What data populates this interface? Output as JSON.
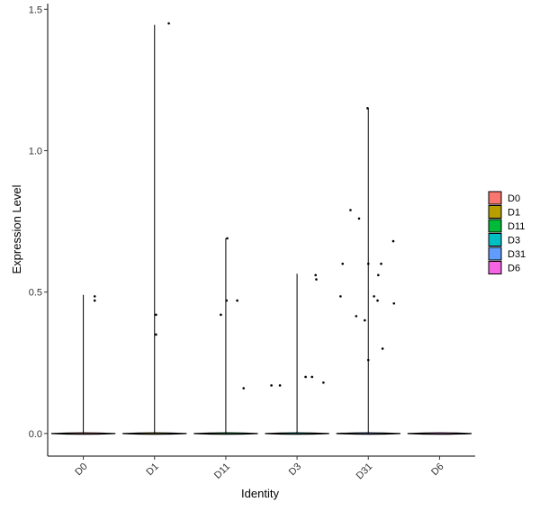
{
  "chart_data": {
    "type": "violin",
    "title": "",
    "xlabel": "Identity",
    "ylabel": "Expression Level",
    "ylim": [
      -0.08,
      1.52
    ],
    "yticks": [
      0.0,
      0.5,
      1.0,
      1.5
    ],
    "ytick_labels": [
      "0.0",
      "0.5",
      "1.0",
      "1.5"
    ],
    "categories": [
      "D0",
      "D1",
      "D11",
      "D3",
      "D31",
      "D6"
    ],
    "grid": false,
    "legend_position": "right",
    "series": [
      {
        "name": "D0",
        "color": "#F8766D",
        "max": 0.49,
        "points": [
          [
            0.16,
            0.485
          ],
          [
            0.16,
            0.47
          ]
        ]
      },
      {
        "name": "D1",
        "color": "#B79F00",
        "max": 1.445,
        "points": [
          [
            0.2,
            1.45
          ],
          [
            0.02,
            0.42
          ],
          [
            0.02,
            0.35
          ]
        ]
      },
      {
        "name": "D11",
        "color": "#00BA38",
        "max": 0.69,
        "points": [
          [
            0.02,
            0.69
          ],
          [
            -0.07,
            0.42
          ],
          [
            0.01,
            0.47
          ],
          [
            0.16,
            0.47
          ],
          [
            0.25,
            0.16
          ]
        ]
      },
      {
        "name": "D3",
        "color": "#00BFC4",
        "max": 0.565,
        "points": [
          [
            -0.36,
            0.17
          ],
          [
            -0.24,
            0.17
          ],
          [
            0.12,
            0.2
          ],
          [
            0.21,
            0.2
          ],
          [
            0.26,
            0.56
          ],
          [
            0.27,
            0.545
          ],
          [
            0.37,
            0.18
          ]
        ]
      },
      {
        "name": "D31",
        "color": "#619CFF",
        "max": 1.15,
        "points": [
          [
            -0.01,
            1.15
          ],
          [
            -0.25,
            0.79
          ],
          [
            -0.13,
            0.76
          ],
          [
            -0.36,
            0.6
          ],
          [
            0.0,
            0.6
          ],
          [
            0.18,
            0.6
          ],
          [
            0.35,
            0.68
          ],
          [
            0.14,
            0.56
          ],
          [
            -0.39,
            0.485
          ],
          [
            0.08,
            0.485
          ],
          [
            0.13,
            0.47
          ],
          [
            -0.17,
            0.415
          ],
          [
            -0.05,
            0.4
          ],
          [
            0.36,
            0.46
          ],
          [
            0.2,
            0.3
          ],
          [
            0.0,
            0.26
          ]
        ]
      },
      {
        "name": "D6",
        "color": "#F564E3",
        "max": 0.0,
        "points": []
      }
    ]
  }
}
